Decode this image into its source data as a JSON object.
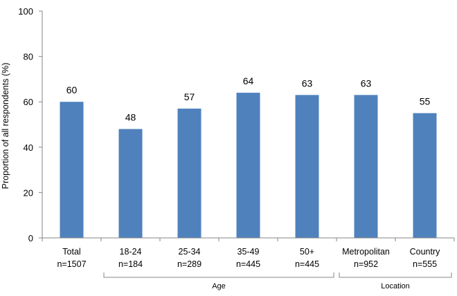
{
  "chart_data": {
    "type": "bar",
    "title": "",
    "xlabel": "",
    "ylabel": "Proportion of all respondents (%)",
    "ylim": [
      0,
      100
    ],
    "yticks": [
      "0",
      "20",
      "40",
      "60",
      "80",
      "100"
    ],
    "grid": false,
    "legend": "none",
    "color": "#4F81BD",
    "categories": [
      {
        "name": "Total",
        "n": "n=1507"
      },
      {
        "name": "18-24",
        "n": "n=184"
      },
      {
        "name": "25-34",
        "n": "n=289"
      },
      {
        "name": "35-49",
        "n": "n=445"
      },
      {
        "name": "50+",
        "n": "n=445"
      },
      {
        "name": "Metropolitan",
        "n": "n=952"
      },
      {
        "name": "Country",
        "n": "n=555"
      }
    ],
    "values": [
      60,
      48,
      57,
      64,
      63,
      63,
      55
    ],
    "groups": [
      {
        "label": "Age",
        "from": 1,
        "to": 4
      },
      {
        "label": "Location",
        "from": 5,
        "to": 6
      }
    ]
  }
}
